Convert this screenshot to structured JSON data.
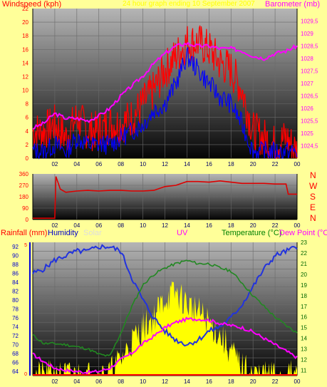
{
  "colors": {
    "bg": "#ffff99",
    "wind": "#ff0000",
    "gust": "#0000ff",
    "baro": "#ff00ff",
    "humidity": "#2233dd",
    "temp": "#228822",
    "dew": "#ff00ff",
    "uv": "#ffff00",
    "rain": "#ff0000",
    "winddir": "#dd0000"
  },
  "header": {
    "left_title": "Windspeed (kph)",
    "center_title": "24 hour graph ending 10 September 2007",
    "right_title": "Barometer (mb)"
  },
  "compass": [
    "N",
    "W",
    "S",
    "E",
    "N"
  ],
  "x_ticks": [
    "02",
    "04",
    "06",
    "08",
    "10",
    "12",
    "14",
    "16",
    "18",
    "20",
    "22",
    "00"
  ],
  "bottom_header": {
    "rainfall": "Rainfall (mm)",
    "humidity": "Humidity",
    "solar": "Solar",
    "uv": "UV",
    "temperature": "Temperature (°C)",
    "dewpoint": "Dew Point (°C)"
  },
  "chart_data": [
    {
      "type": "line",
      "title": "24 hour graph ending 10 September 2007",
      "ylabel": "Windspeed (kph)",
      "y2label": "Barometer (mb)",
      "ylim": [
        0,
        22
      ],
      "y2lim": [
        1024,
        1030
      ],
      "y_ticks": [
        "0",
        "2",
        "4",
        "6",
        "8",
        "10",
        "12",
        "14",
        "16",
        "18",
        "20",
        "22"
      ],
      "y2_ticks": [
        "1024,5",
        "1025",
        "1025,5",
        "1026",
        "1026,5",
        "1027",
        "1027,5",
        "1028",
        "1028,5",
        "1029",
        "1029,5"
      ],
      "x_hours": [
        0,
        1,
        2,
        3,
        4,
        5,
        6,
        7,
        8,
        9,
        10,
        11,
        12,
        13,
        14,
        15,
        16,
        17,
        18,
        19,
        20,
        21,
        22,
        23,
        24
      ],
      "series": [
        {
          "role": "wind",
          "values": [
            4,
            4,
            5,
            3,
            6,
            4,
            4,
            5,
            5,
            6,
            8,
            10,
            13,
            15,
            17,
            17,
            16,
            14,
            13,
            10,
            4,
            3,
            2,
            3,
            1
          ]
        },
        {
          "role": "gust",
          "values": [
            1,
            1,
            2,
            1,
            3,
            2,
            2,
            2,
            3,
            4,
            5,
            7,
            8,
            11,
            15,
            13,
            11,
            9,
            8,
            5,
            1,
            1,
            1,
            1,
            1
          ]
        },
        {
          "role": "baro",
          "values": [
            1025.2,
            1025.4,
            1025.8,
            1025.6,
            1025.6,
            1025.5,
            1025.7,
            1026.0,
            1026.5,
            1026.9,
            1027.3,
            1027.8,
            1028.2,
            1028.5,
            1028.6,
            1028.5,
            1028.5,
            1028.4,
            1028.4,
            1028.3,
            1028.1,
            1028.0,
            1028.2,
            1028.3,
            1028.5
          ]
        }
      ]
    },
    {
      "type": "line",
      "ylabel": "Wind direction",
      "ylim": [
        0,
        360
      ],
      "y_ticks": [
        "0",
        "90",
        "180",
        "270",
        "360"
      ],
      "x_hours": [
        0,
        1,
        2,
        2.1,
        2.5,
        3,
        4,
        5,
        6,
        7,
        8,
        9,
        10,
        11,
        12,
        13,
        14,
        15,
        16,
        17,
        18,
        19,
        20,
        21,
        22,
        23,
        23.2,
        24
      ],
      "series": [
        {
          "role": "winddir",
          "values": [
            10,
            10,
            10,
            340,
            240,
            215,
            225,
            230,
            225,
            230,
            230,
            225,
            225,
            230,
            260,
            270,
            300,
            300,
            295,
            305,
            295,
            285,
            285,
            285,
            280,
            280,
            200,
            200
          ]
        }
      ]
    },
    {
      "type": "line",
      "ylabel": "Humidity",
      "y2label": "Temperature (°C)",
      "ylim": [
        63,
        93
      ],
      "y2lim": [
        10.5,
        23
      ],
      "y_ticks": [
        "64",
        "66",
        "68",
        "70",
        "72",
        "74",
        "76",
        "78",
        "80",
        "82",
        "84",
        "86",
        "88",
        "90",
        "92"
      ],
      "y2_ticks": [
        "11",
        "12",
        "13",
        "14",
        "15",
        "16",
        "17",
        "18",
        "19",
        "20",
        "21",
        "22",
        "23"
      ],
      "x_hours": [
        0,
        1,
        2,
        3,
        4,
        5,
        6,
        7,
        8,
        9,
        10,
        11,
        12,
        13,
        14,
        15,
        16,
        17,
        18,
        19,
        20,
        21,
        22,
        23,
        24
      ],
      "series": [
        {
          "role": "humidity",
          "values": [
            86,
            87,
            89,
            90,
            91,
            91,
            92,
            92,
            91,
            85,
            80,
            76,
            73,
            71,
            70,
            71,
            73,
            74,
            76,
            79,
            83,
            87,
            90,
            91,
            92
          ]
        },
        {
          "role": "temp",
          "values": [
            14.3,
            13.5,
            13.5,
            13.4,
            13.2,
            13.0,
            12.5,
            12.3,
            14.5,
            17.0,
            19.0,
            20.0,
            20.6,
            21.0,
            21.3,
            21.0,
            21.0,
            20.6,
            20.3,
            19.2,
            18.0,
            17.0,
            16.0,
            15.2,
            14.5
          ]
        },
        {
          "role": "dew",
          "values": [
            12.5,
            11.8,
            11.2,
            11.0,
            10.9,
            10.8,
            10.9,
            11.2,
            12.0,
            12.6,
            13.5,
            14.2,
            15.0,
            15.5,
            15.8,
            15.8,
            15.7,
            15.4,
            15.2,
            15.0,
            14.6,
            14.0,
            13.4,
            12.8,
            12.2
          ]
        },
        {
          "role": "uv",
          "values": [
            0,
            0,
            0,
            0,
            0,
            0,
            0,
            0.2,
            1.2,
            2.6,
            3.6,
            4.4,
            5.8,
            6.2,
            5.4,
            4.8,
            4.0,
            3.0,
            1.8,
            0.6,
            0.1,
            0,
            0,
            0,
            0
          ]
        },
        {
          "role": "rain",
          "values": [
            0,
            0,
            0,
            0,
            0,
            0,
            0,
            0,
            0,
            0,
            0,
            0,
            0,
            0,
            0,
            0,
            0,
            0,
            0,
            0,
            0,
            0,
            0,
            0,
            0
          ]
        }
      ],
      "uv_lim": [
        0,
        10
      ],
      "rain_axis_ticks": [
        "0",
        "5"
      ]
    }
  ]
}
